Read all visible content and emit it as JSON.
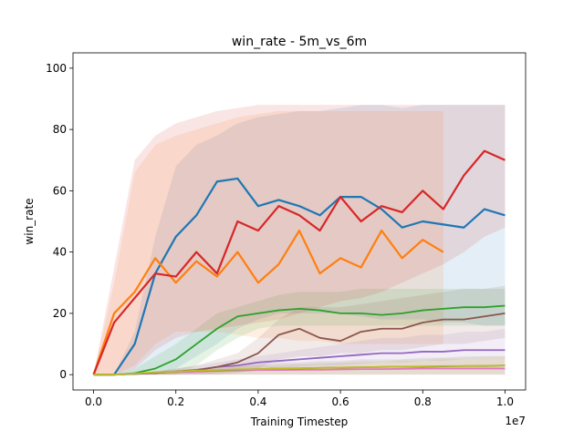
{
  "chart_data": {
    "type": "line",
    "title": "win_rate - 5m_vs_6m",
    "xlabel": "Training Timestep",
    "ylabel": "win_rate",
    "x_offset_label": "1e7",
    "xlim": [
      -0.05,
      1.05
    ],
    "ylim": [
      -5,
      105
    ],
    "x_scale_note": "x values in units of 1e7 timesteps",
    "xticks": [
      0.0,
      0.2,
      0.4,
      0.6,
      0.8,
      1.0
    ],
    "xtick_labels": [
      "0.0",
      "0.2",
      "0.4",
      "0.6",
      "0.8",
      "1.0"
    ],
    "yticks": [
      0,
      20,
      40,
      60,
      80,
      100
    ],
    "ytick_labels": [
      "0",
      "20",
      "40",
      "60",
      "80",
      "100"
    ],
    "grid": false,
    "legend": "none",
    "series": [
      {
        "color": "#1f77b4",
        "band_upper": [
          0,
          0,
          14,
          45,
          68,
          75,
          78,
          82,
          84,
          85,
          86,
          86,
          87,
          88,
          88,
          87,
          88,
          88,
          88,
          88,
          88
        ],
        "band_lower": [
          0,
          0,
          0,
          0,
          2,
          6,
          10,
          15,
          18,
          20,
          20,
          20,
          20,
          19,
          18,
          18,
          18,
          17,
          17,
          16,
          16
        ],
        "x": [
          0,
          0.05,
          0.1,
          0.15,
          0.2,
          0.25,
          0.3,
          0.35,
          0.4,
          0.45,
          0.5,
          0.55,
          0.6,
          0.65,
          0.7,
          0.75,
          0.8,
          0.85,
          0.9,
          0.95,
          1.0
        ],
        "y": [
          0,
          0,
          10,
          33,
          45,
          52,
          63,
          64,
          55,
          57,
          55,
          52,
          58,
          58,
          54,
          48,
          50,
          49,
          48,
          54,
          52
        ]
      },
      {
        "color": "#ff7f0e",
        "band_upper": [
          0,
          30,
          66,
          75,
          78,
          80,
          82,
          84,
          85,
          86,
          86,
          86,
          86,
          86,
          86,
          86,
          86,
          86
        ],
        "band_lower": [
          0,
          0,
          3,
          10,
          14,
          14,
          14,
          13,
          12,
          12,
          11,
          11,
          10,
          10,
          10,
          10,
          10,
          10
        ],
        "x": [
          0,
          0.05,
          0.1,
          0.15,
          0.2,
          0.25,
          0.3,
          0.35,
          0.4,
          0.45,
          0.5,
          0.55,
          0.6,
          0.65,
          0.7,
          0.75,
          0.8,
          0.85
        ],
        "y": [
          0,
          20,
          27,
          38,
          30,
          37,
          32,
          40,
          30,
          36,
          47,
          33,
          38,
          35,
          47,
          38,
          44,
          40
        ]
      },
      {
        "color": "#2ca02c",
        "band_upper": [
          0,
          0,
          2,
          6,
          10,
          15,
          20,
          22,
          24,
          26,
          27,
          27,
          27,
          28,
          28,
          28,
          28,
          28,
          28,
          28,
          28
        ],
        "band_lower": [
          0,
          0,
          0,
          0,
          0,
          3,
          8,
          12,
          15,
          16,
          16,
          16,
          16,
          16,
          16,
          16,
          16,
          16,
          16,
          16,
          16
        ],
        "x": [
          0,
          0.05,
          0.1,
          0.15,
          0.2,
          0.25,
          0.3,
          0.35,
          0.4,
          0.45,
          0.5,
          0.55,
          0.6,
          0.65,
          0.7,
          0.75,
          0.8,
          0.85,
          0.9,
          0.95,
          1.0
        ],
        "y": [
          0,
          0,
          0.5,
          2,
          5,
          10,
          15,
          19,
          20,
          21,
          21.5,
          21,
          20,
          20,
          19.5,
          20,
          21,
          21.5,
          22,
          22,
          22.5
        ]
      },
      {
        "color": "#d62728",
        "band_upper": [
          0,
          35,
          70,
          78,
          82,
          84,
          86,
          87,
          88,
          88,
          88,
          88,
          88,
          88,
          88,
          88,
          88,
          88,
          88,
          88,
          88
        ],
        "band_lower": [
          0,
          0,
          2,
          8,
          12,
          14,
          15,
          16,
          17,
          18,
          20,
          22,
          24,
          25,
          27,
          30,
          33,
          36,
          40,
          45,
          48
        ],
        "x": [
          0,
          0.05,
          0.1,
          0.15,
          0.2,
          0.25,
          0.3,
          0.35,
          0.4,
          0.45,
          0.5,
          0.55,
          0.6,
          0.65,
          0.7,
          0.75,
          0.8,
          0.85,
          0.9,
          0.95,
          1.0
        ],
        "y": [
          0,
          17,
          25,
          33,
          32,
          40,
          33,
          50,
          47,
          55,
          52,
          47,
          58,
          50,
          55,
          53,
          60,
          54,
          65,
          73,
          70
        ]
      },
      {
        "color": "#9467bd",
        "band_upper": [
          0,
          0,
          0.5,
          1,
          2,
          3,
          4,
          5,
          6,
          7,
          8,
          9,
          10,
          11,
          12,
          12,
          13,
          13,
          14,
          14,
          15
        ],
        "band_lower": [
          0,
          0,
          0,
          0,
          0,
          0,
          0.5,
          1,
          1.5,
          2,
          2.5,
          3,
          3,
          3.5,
          4,
          4,
          4.5,
          4.5,
          5,
          5,
          5
        ],
        "x": [
          0,
          0.05,
          0.1,
          0.15,
          0.2,
          0.25,
          0.3,
          0.35,
          0.4,
          0.45,
          0.5,
          0.55,
          0.6,
          0.65,
          0.7,
          0.75,
          0.8,
          0.85,
          0.9,
          0.95,
          1.0
        ],
        "y": [
          0,
          0,
          0.2,
          0.5,
          1,
          1.5,
          2.5,
          3,
          4,
          4.5,
          5,
          5.5,
          6,
          6.5,
          7,
          7,
          7.5,
          7.5,
          8,
          8,
          8
        ]
      },
      {
        "color": "#8c564b",
        "band_upper": [
          0,
          0,
          0.5,
          1,
          2,
          3,
          5,
          7,
          12,
          18,
          22,
          22,
          22,
          23,
          24,
          25,
          26,
          27,
          28,
          28,
          29
        ],
        "band_lower": [
          0,
          0,
          0,
          0,
          0,
          0,
          0,
          0.5,
          2,
          5,
          6,
          6,
          7,
          7,
          8,
          8,
          9,
          10,
          10,
          11,
          12
        ],
        "x": [
          0,
          0.05,
          0.1,
          0.15,
          0.2,
          0.25,
          0.3,
          0.35,
          0.4,
          0.45,
          0.5,
          0.55,
          0.6,
          0.65,
          0.7,
          0.75,
          0.8,
          0.85,
          0.9,
          0.95,
          1.0
        ],
        "y": [
          0,
          0,
          0.3,
          0.5,
          1,
          1.5,
          2.5,
          4,
          7,
          13,
          15,
          12,
          11,
          14,
          15,
          15,
          17,
          18,
          18,
          19,
          20
        ]
      },
      {
        "color": "#e377c2",
        "band_upper": [
          0,
          0,
          0.5,
          1,
          1.5,
          2,
          2,
          2.5,
          3,
          3,
          3.5,
          3.5,
          4,
          4,
          4,
          4.5,
          4.5,
          5,
          5,
          5,
          5
        ],
        "band_lower": [
          0,
          0,
          0,
          0,
          0,
          0,
          0,
          0,
          0,
          0,
          0,
          0,
          0,
          0,
          0,
          0,
          0,
          0,
          0,
          0,
          0
        ],
        "x": [
          0,
          0.05,
          0.1,
          0.15,
          0.2,
          0.25,
          0.3,
          0.35,
          0.4,
          0.45,
          0.5,
          0.55,
          0.6,
          0.65,
          0.7,
          0.75,
          0.8,
          0.85,
          0.9,
          0.95,
          1.0
        ],
        "y": [
          0,
          0,
          0.3,
          0.6,
          0.8,
          1,
          1.2,
          1.3,
          1.5,
          1.5,
          1.6,
          1.6,
          1.7,
          1.8,
          1.8,
          1.9,
          2,
          2,
          2,
          2,
          2
        ]
      },
      {
        "color": "#7f7f7f",
        "band_upper": [
          0,
          0,
          0.5,
          1,
          1.5,
          2,
          2.5,
          3,
          3.5,
          4,
          4,
          4.5,
          4.5,
          5,
          5,
          5,
          5.5,
          5.5,
          6,
          6,
          6
        ],
        "band_lower": [
          0,
          0,
          0,
          0,
          0,
          0,
          0,
          0,
          0,
          0,
          0,
          0,
          0,
          0,
          0,
          0,
          0,
          0,
          0,
          0,
          0
        ],
        "x": [
          0,
          0.05,
          0.1,
          0.15,
          0.2,
          0.25,
          0.3,
          0.35,
          0.4,
          0.45,
          0.5,
          0.55,
          0.6,
          0.65,
          0.7,
          0.75,
          0.8,
          0.85,
          0.9,
          0.95,
          1.0
        ],
        "y": [
          0,
          0,
          0.3,
          0.7,
          1,
          1.2,
          1.4,
          1.6,
          1.8,
          2,
          2,
          2.2,
          2.3,
          2.4,
          2.5,
          2.6,
          2.6,
          2.7,
          2.8,
          2.8,
          3
        ]
      },
      {
        "color": "#bcbd22",
        "band_upper": [
          0,
          0,
          0.5,
          1,
          1.5,
          2,
          2.5,
          3,
          3,
          3.5,
          3.5,
          4,
          4,
          4.5,
          4.5,
          5,
          5,
          5.5,
          5.5,
          6,
          6
        ],
        "band_lower": [
          0,
          0,
          0,
          0,
          0,
          0,
          0,
          0,
          0,
          0,
          0,
          0,
          0,
          0,
          0,
          0,
          0,
          0,
          0,
          0,
          0
        ],
        "x": [
          0,
          0.05,
          0.1,
          0.15,
          0.2,
          0.25,
          0.3,
          0.35,
          0.4,
          0.45,
          0.5,
          0.55,
          0.6,
          0.65,
          0.7,
          0.75,
          0.8,
          0.85,
          0.9,
          0.95,
          1.0
        ],
        "y": [
          0,
          0,
          0.4,
          0.8,
          1,
          1.3,
          1.5,
          1.7,
          1.8,
          2,
          2.1,
          2.2,
          2.3,
          2.4,
          2.5,
          2.6,
          2.7,
          2.8,
          2.8,
          2.9,
          3
        ]
      }
    ]
  }
}
